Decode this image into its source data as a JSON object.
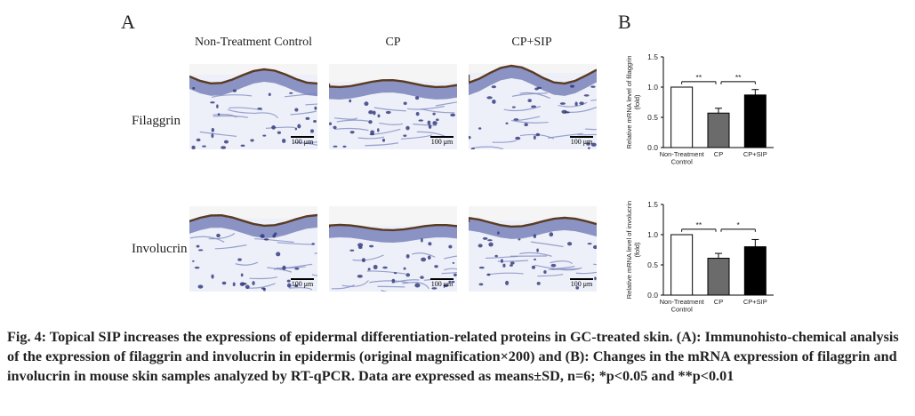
{
  "panel_a": {
    "letter": "A",
    "columns": [
      "Non-Treatment Control",
      "CP",
      "CP+SIP"
    ],
    "rows": [
      "Filaggrin",
      "Involucrin"
    ],
    "scale_bar": "100 μm"
  },
  "panel_b": {
    "letter": "B"
  },
  "chart_data": [
    {
      "type": "bar",
      "categories": [
        "Non-Treatment Control",
        "CP",
        "CP+SIP"
      ],
      "category_lines": [
        [
          "Non-Treatment",
          "Control"
        ],
        [
          "CP"
        ],
        [
          "CP+SIP"
        ]
      ],
      "values": [
        1.0,
        0.57,
        0.87
      ],
      "errors": [
        0.0,
        0.08,
        0.09
      ],
      "bar_colors": [
        "#ffffff",
        "#6b6b6b",
        "#000000"
      ],
      "ylabel": "Relative mRNA level of filaggrin",
      "ylabel2": "(fold)",
      "ylim": [
        0,
        1.5
      ],
      "yticks": [
        "0.0",
        "0.5",
        "1.0",
        "1.5"
      ],
      "significance": [
        {
          "from": 0,
          "to": 1,
          "label": "**"
        },
        {
          "from": 1,
          "to": 2,
          "label": "**"
        }
      ]
    },
    {
      "type": "bar",
      "categories": [
        "Non-Treatment Control",
        "CP",
        "CP+SIP"
      ],
      "category_lines": [
        [
          "Non-Treatment",
          "Control"
        ],
        [
          "CP"
        ],
        [
          "CP+SIP"
        ]
      ],
      "values": [
        1.0,
        0.61,
        0.8
      ],
      "errors": [
        0.0,
        0.08,
        0.12
      ],
      "bar_colors": [
        "#ffffff",
        "#6b6b6b",
        "#000000"
      ],
      "ylabel": "Relative mRNA level of involucrin",
      "ylabel2": "(fold)",
      "ylim": [
        0,
        1.5
      ],
      "yticks": [
        "0.0",
        "0.5",
        "1.0",
        "1.5"
      ],
      "significance": [
        {
          "from": 0,
          "to": 1,
          "label": "**"
        },
        {
          "from": 1,
          "to": 2,
          "label": "*"
        }
      ]
    }
  ],
  "caption": "Fig. 4: Topical SIP increases the expressions of epidermal differentiation-related proteins in GC-treated skin. (A): Immunohisto-chemical analysis of the expression of filaggrin and involucrin in epidermis (original magnification×200) and (B): Changes in the mRNA expression of filaggrin and involucrin in mouse skin samples analyzed by RT-qPCR. Data are expressed as means±SD, n=6; *p<0.05 and **p<0.01"
}
